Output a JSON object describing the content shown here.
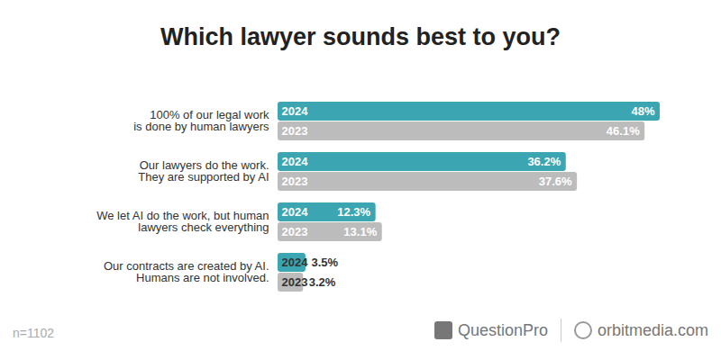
{
  "chart_data": {
    "type": "bar",
    "orientation": "horizontal",
    "title": "Which lawyer sounds best to you?",
    "categories": [
      "100% of our legal work\nis done by human lawyers",
      "Our lawyers do the work.\nThey are supported by AI",
      "We let AI do the work, but human\nlawyers check everything",
      "Our contracts are created by AI.\nHumans are not involved."
    ],
    "series": [
      {
        "name": "2024",
        "color": "#3ba6b1",
        "values": [
          48,
          36.2,
          12.3,
          3.5
        ],
        "value_labels": [
          "48%",
          "36.2%",
          "12.3%",
          "3.5%"
        ]
      },
      {
        "name": "2023",
        "color": "#bcbcbc",
        "values": [
          46.1,
          37.6,
          13.1,
          3.2
        ],
        "value_labels": [
          "46.1%",
          "37.6%",
          "13.1%",
          "3.2%"
        ]
      }
    ],
    "xlim": [
      0,
      48
    ],
    "data_labels": true,
    "tick_labels": "y",
    "grid": false,
    "note": "n=1102",
    "source": [
      "QuestionPro",
      "orbitmedia.com"
    ]
  }
}
